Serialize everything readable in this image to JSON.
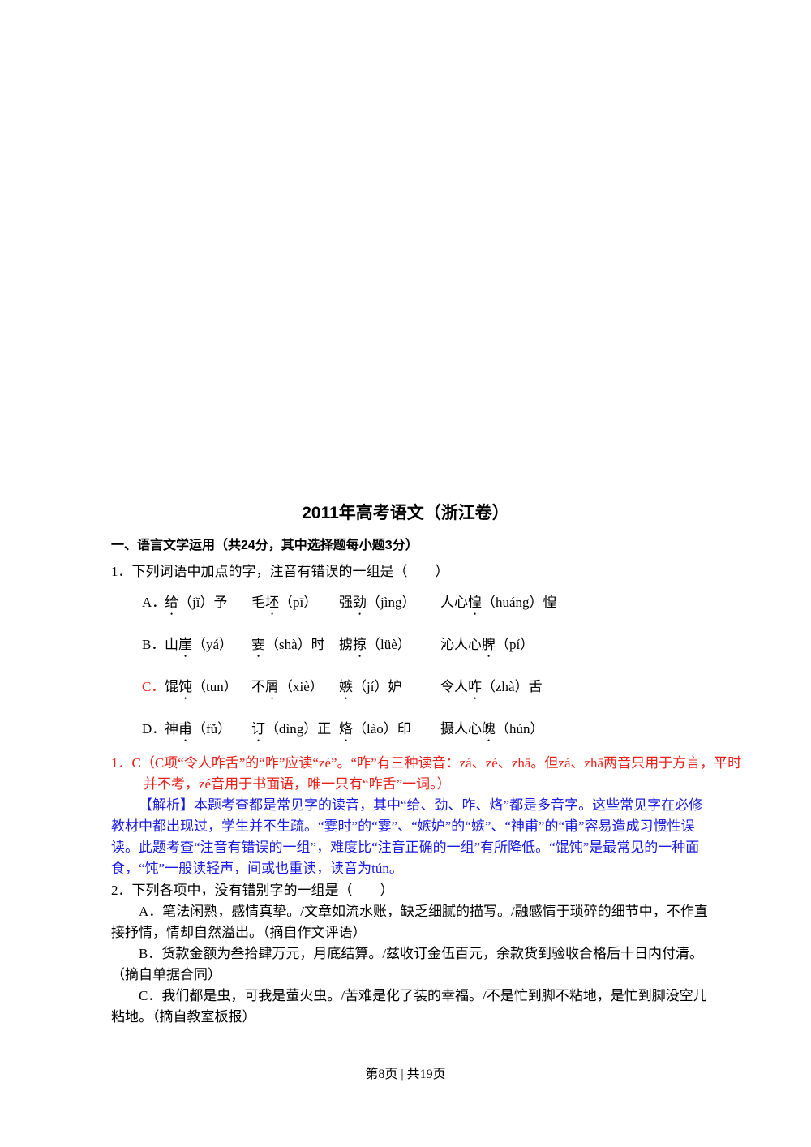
{
  "title": "2011年高考语文（浙江卷）",
  "section": "一、语言文学运用（共24分，其中选择题每小题3分）",
  "q1": {
    "stem": "1．下列词语中加点的字，注音有错误的一组是（　　）",
    "options": [
      {
        "label": "A．",
        "items": [
          {
            "dot": "给",
            "post": "（jǐ）予"
          },
          {
            "pre": "毛",
            "dot": "坯",
            "post": "（pī）"
          },
          {
            "pre": "强",
            "dot": "劲",
            "post": "（jìng）"
          },
          {
            "pre": "人心",
            "dot": "惶",
            "post": "（huáng）惶"
          }
        ]
      },
      {
        "label": "B．",
        "items": [
          {
            "pre": "山",
            "dot": "崖",
            "post": "（yá）"
          },
          {
            "dot": "霎",
            "post": "（shà）时"
          },
          {
            "pre": "掳",
            "dot": "掠",
            "post": "（lüè）"
          },
          {
            "pre": "沁人心",
            "dot": "脾",
            "post": "（pí）"
          }
        ]
      },
      {
        "label": "C．",
        "color": "#e8201a",
        "items": [
          {
            "pre": "馄",
            "dot": "饨",
            "post": "（tun）"
          },
          {
            "pre": "不",
            "dot": "屑",
            "post": "（xiè）"
          },
          {
            "dot": "嫉",
            "post": "（jí）妒"
          },
          {
            "pre": "令人",
            "dot": "咋",
            "post": "（zhà）舌"
          }
        ]
      },
      {
        "label": "D．",
        "items": [
          {
            "pre": "神",
            "dot": "甫",
            "post": "（fǔ）"
          },
          {
            "dot": "订",
            "post": "（dìng）正"
          },
          {
            "dot": "烙",
            "post": "（lào）印"
          },
          {
            "pre": "摄人心",
            "dot": "魄",
            "post": "（hún）"
          }
        ]
      }
    ]
  },
  "answer1": "1．C（C项“令人咋舌”的“咋”应读“zé”。“咋”有三种读音：zá、zé、zhā。但zá、zhā两音只用于方言，平时并不考，zé音用于书面语，唯一只有“咋舌”一词。）",
  "analysis1": "【解析】本题考查都是常见字的读音，其中“给、劲、咋、烙”都是多音字。这些常见字在必修教材中都出现过，学生并不生疏。“霎时”的“霎”、“嫉妒”的“嫉”、“神甫”的“甫”容易造成习惯性误读。此题考查“注音有错误的一组”，难度比“注音正确的一组”有所降低。“馄饨”是最常见的一种面食，“饨”一般读轻声，间或也重读，读音为tún。",
  "q2": {
    "stem": "2．下列各项中，没有错别字的一组是（　　）",
    "options": [
      "A．笔法闲熟，感情真挚。/文章如流水账，缺乏细腻的描写。/融感情于琐碎的细节中，不作直接抒情，情却自然溢出。（摘自作文评语）",
      "B．货款金额为叁拾肆万元，月底结算。/兹收订金伍百元，余款货到验收合格后十日内付清。（摘自单据合同）",
      "C．我们都是虫，可我是萤火虫。/苦难是化了装的幸福。/不是忙到脚不粘地，是忙到脚没空儿粘地。（摘自教室板报）"
    ]
  },
  "footer": "第8页 | 共19页"
}
